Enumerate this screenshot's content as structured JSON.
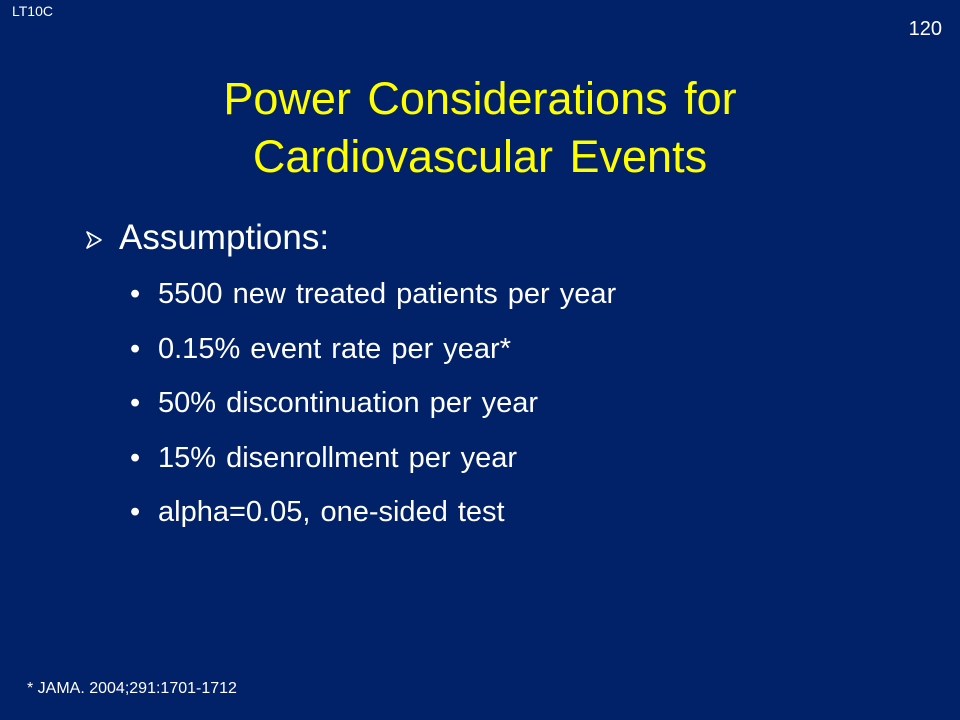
{
  "header": {
    "corner_label": "LT10C",
    "slide_number": "120"
  },
  "title": {
    "line1": "Power Considerations for",
    "line2": "Cardiovascular Events"
  },
  "colors": {
    "background": "#012169",
    "title": "#ffff00",
    "text": "#ffffff"
  },
  "content": {
    "heading_icon": "arrow-bullet-icon",
    "heading": "Assumptions:",
    "bullet_glyph": "•",
    "items": [
      "5500 new treated patients per year",
      "0.15% event rate per year*",
      "50% discontinuation per year",
      "15% disenrollment per year",
      "alpha=0.05, one-sided test"
    ]
  },
  "footnote": "* JAMA. 2004;291:1701-1712"
}
